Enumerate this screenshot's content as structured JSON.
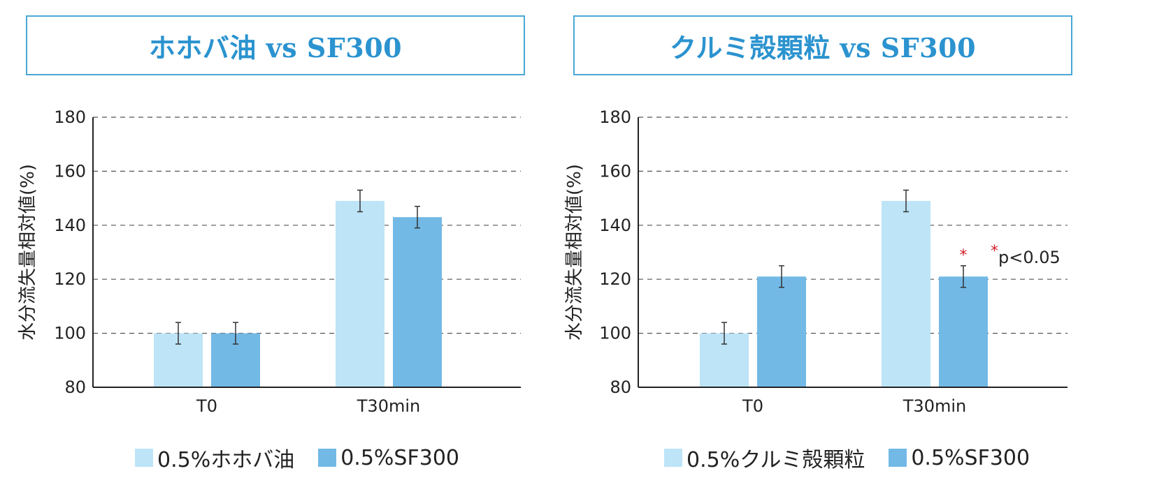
{
  "colors": {
    "series1": "#bde4f7",
    "series2": "#72b9e6",
    "title": "#2b93cf",
    "star": "#d0202a"
  },
  "chart_data": [
    {
      "type": "bar",
      "title": "ホホバ油 vs SF300",
      "ylabel": "水分流失量相対値(%)",
      "xlabel": "",
      "ylim": [
        80,
        180
      ],
      "yticks": [
        80,
        100,
        120,
        140,
        160,
        180
      ],
      "grid": "horizontal dashed",
      "categories": [
        "T0",
        "T30min"
      ],
      "series": [
        {
          "name": "0.5%ホホバ油",
          "values": [
            100,
            149
          ],
          "errors": [
            4,
            4
          ]
        },
        {
          "name": "0.5%SF300",
          "values": [
            100,
            143
          ],
          "errors": [
            4,
            4
          ]
        }
      ],
      "legend": "bottom"
    },
    {
      "type": "bar",
      "title": "クルミ殻顆粒 vs SF300",
      "ylabel": "水分流失量相対値(%)",
      "xlabel": "",
      "ylim": [
        80,
        180
      ],
      "yticks": [
        80,
        100,
        120,
        140,
        160,
        180
      ],
      "grid": "horizontal dashed",
      "categories": [
        "T0",
        "T30min"
      ],
      "series": [
        {
          "name": "0.5%クルミ殻顆粒",
          "values": [
            100,
            149
          ],
          "errors": [
            4,
            4
          ]
        },
        {
          "name": "0.5%SF300",
          "values": [
            121,
            121
          ],
          "errors": [
            4,
            4
          ]
        }
      ],
      "significance": {
        "star": "*",
        "note": "p<0.05",
        "category": "T30min",
        "series": 1
      },
      "legend": "bottom"
    }
  ]
}
